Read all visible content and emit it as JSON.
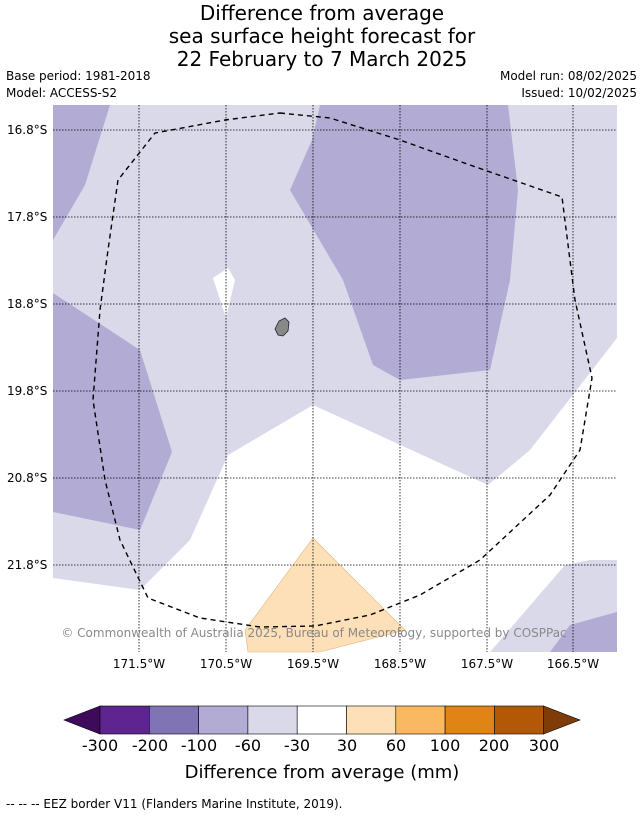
{
  "title": {
    "line1": "Difference from average",
    "line2": "sea surface height forecast for",
    "line3": "22 February to 7 March 2025"
  },
  "meta": {
    "base_period": "Base period: 1981-2018",
    "model": "Model: ACCESS-S2",
    "model_run": "Model run: 08/02/2025",
    "issued": "Issued: 10/02/2025"
  },
  "axes": {
    "lat_labels": [
      "16.8°S",
      "17.8°S",
      "18.8°S",
      "19.8°S",
      "20.8°S",
      "21.8°S"
    ],
    "lon_labels": [
      "171.5°W",
      "170.5°W",
      "169.5°W",
      "168.5°W",
      "167.5°W",
      "166.5°W"
    ]
  },
  "credit": "© Commonwealth of Australia 2025, Bureau of Meteorology, supported by COSPPac",
  "colorbar": {
    "ticks": [
      "-300",
      "-200",
      "-100",
      "-60",
      "-30",
      "30",
      "60",
      "100",
      "200",
      "300"
    ],
    "colors": [
      "#3f0a5c",
      "#5e2590",
      "#8174b4",
      "#b2abd4",
      "#d9d9ea",
      "#ffffff",
      "#fde0b7",
      "#fbb862",
      "#e08515",
      "#b35806",
      "#7f3b08"
    ],
    "label": "Difference from average (mm)"
  },
  "footnote": "--  --  -- EEZ border V11 (Flanders Marine Institute, 2019).",
  "legend_colors": {
    "light_purple": "#d9d9ea",
    "mid_purple": "#b2abd4",
    "light_orange": "#fde0b7",
    "land": "#888888"
  }
}
